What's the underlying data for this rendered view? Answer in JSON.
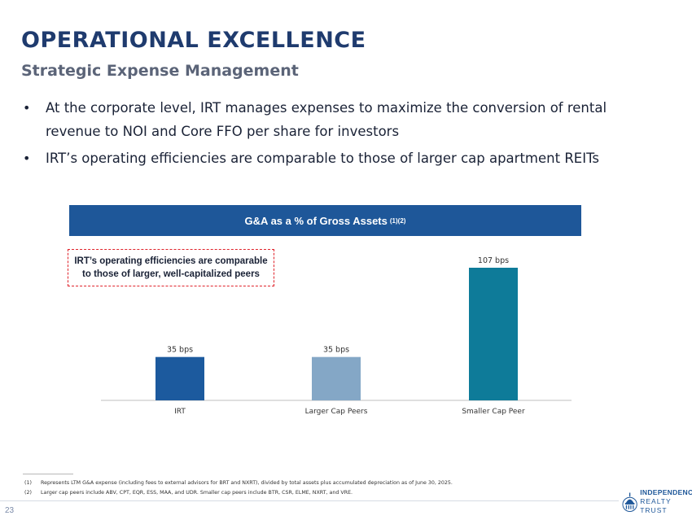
{
  "header": {
    "title": "OPERATIONAL EXCELLENCE",
    "subtitle": "Strategic Expense Management"
  },
  "bullets": [
    "At the corporate level, IRT manages expenses to maximize the conversion of rental revenue to NOI and Core FFO per share for investors",
    "IRT’s operating efficiencies are comparable to those of larger cap apartment REITs"
  ],
  "chart_header": {
    "title": "G&A as a % of Gross Assets",
    "superscript": "(1)(2)"
  },
  "callout": {
    "line1": "IRT’s operating efficiencies are comparable",
    "line2": "to those of larger, well-capitalized peers"
  },
  "chart_data": {
    "type": "bar",
    "title": "G&A as a % of Gross Assets",
    "categories": [
      "IRT",
      "Larger Cap Peers",
      "Smaller Cap Peer"
    ],
    "values": [
      35,
      35,
      107
    ],
    "value_labels": [
      "35 bps",
      "35 bps",
      "107 bps"
    ],
    "colors": [
      "#1c5a9e",
      "#84a7c6",
      "#0e7b99"
    ],
    "xlabel": "",
    "ylabel": "",
    "ylim": [
      0,
      107
    ],
    "grid": false
  },
  "footnotes": [
    {
      "num": "(1)",
      "text": "Represents LTM G&A expense (including fees to external advisors for BRT and NXRT), divided by total assets plus accumulated depreciation as of June 30, 2025."
    },
    {
      "num": "(2)",
      "text": "Larger cap peers include ABV, CPT, EQR, ESS, MAA, and UDR. Smaller cap peers include BTR, CSR, ELME, NXRT, and VRE."
    }
  ],
  "page_number": "23",
  "logo": {
    "line1": "INDEPENDENCE",
    "line2": "REALTY TRUST"
  },
  "colors": {
    "title": "#1f3b6e",
    "subtitle": "#5b6478",
    "header_band": "#1e5799",
    "callout_border": "#e0232b"
  }
}
